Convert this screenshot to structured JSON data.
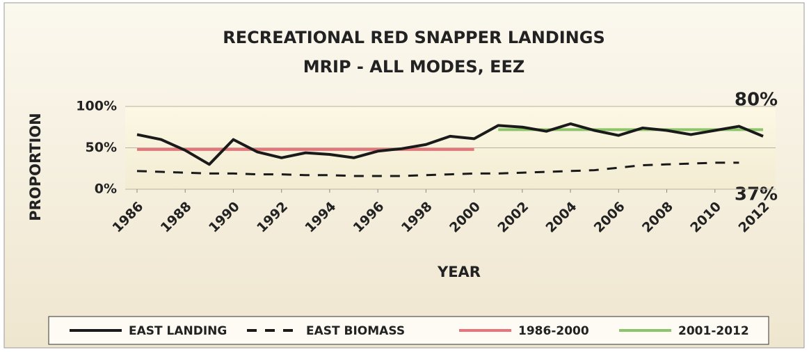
{
  "chart_data": {
    "type": "line",
    "title": "RECREATIONAL RED SNAPPER LANDINGS",
    "subtitle": "MRIP - ALL MODES, EEZ",
    "xlabel": "YEAR",
    "ylabel": "PROPORTION",
    "annotations": [
      "80%",
      "37%"
    ],
    "x": [
      1986,
      1987,
      1988,
      1989,
      1990,
      1991,
      1992,
      1993,
      1994,
      1995,
      1996,
      1997,
      1998,
      1999,
      2000,
      2001,
      2002,
      2003,
      2004,
      2005,
      2006,
      2007,
      2008,
      2009,
      2010,
      2011,
      2012
    ],
    "xlim": [
      1986,
      2012
    ],
    "xticks": [
      1986,
      1988,
      1990,
      1992,
      1994,
      1996,
      1998,
      2000,
      2002,
      2004,
      2006,
      2008,
      2010,
      2012
    ],
    "ylim": [
      0,
      100
    ],
    "yticks": [
      {
        "value": 0,
        "label": "0%"
      },
      {
        "value": 50,
        "label": "50%"
      },
      {
        "value": 100,
        "label": "100%"
      }
    ],
    "grid": true,
    "legend": "bottom",
    "series": [
      {
        "name": "EAST LANDING",
        "color": "#1a1a1a",
        "style": "solid",
        "values": [
          66,
          60,
          47,
          30,
          60,
          45,
          38,
          44,
          42,
          38,
          46,
          49,
          54,
          64,
          61,
          77,
          75,
          70,
          79,
          71,
          65,
          74,
          71,
          66,
          71,
          76,
          64
        ]
      },
      {
        "name": "EAST BIOMASS",
        "color": "#1a1a1a",
        "style": "dashed",
        "values": [
          22,
          21,
          20,
          19,
          19,
          18,
          18,
          17,
          17,
          16,
          16,
          16,
          17,
          18,
          19,
          19,
          20,
          21,
          22,
          23,
          26,
          29,
          30,
          31,
          32,
          32,
          null
        ]
      },
      {
        "name": "1986-2000",
        "color": "#e8737a",
        "style": "solid",
        "values": [
          48,
          48,
          48,
          48,
          48,
          48,
          48,
          48,
          48,
          48,
          48,
          48,
          48,
          48,
          48,
          null,
          null,
          null,
          null,
          null,
          null,
          null,
          null,
          null,
          null,
          null,
          null
        ]
      },
      {
        "name": "2001-2012",
        "color": "#8dc56a",
        "style": "solid",
        "values": [
          null,
          null,
          null,
          null,
          null,
          null,
          null,
          null,
          null,
          null,
          null,
          null,
          null,
          null,
          null,
          72,
          72,
          72,
          72,
          72,
          72,
          72,
          72,
          72,
          72,
          72,
          72
        ]
      }
    ]
  }
}
